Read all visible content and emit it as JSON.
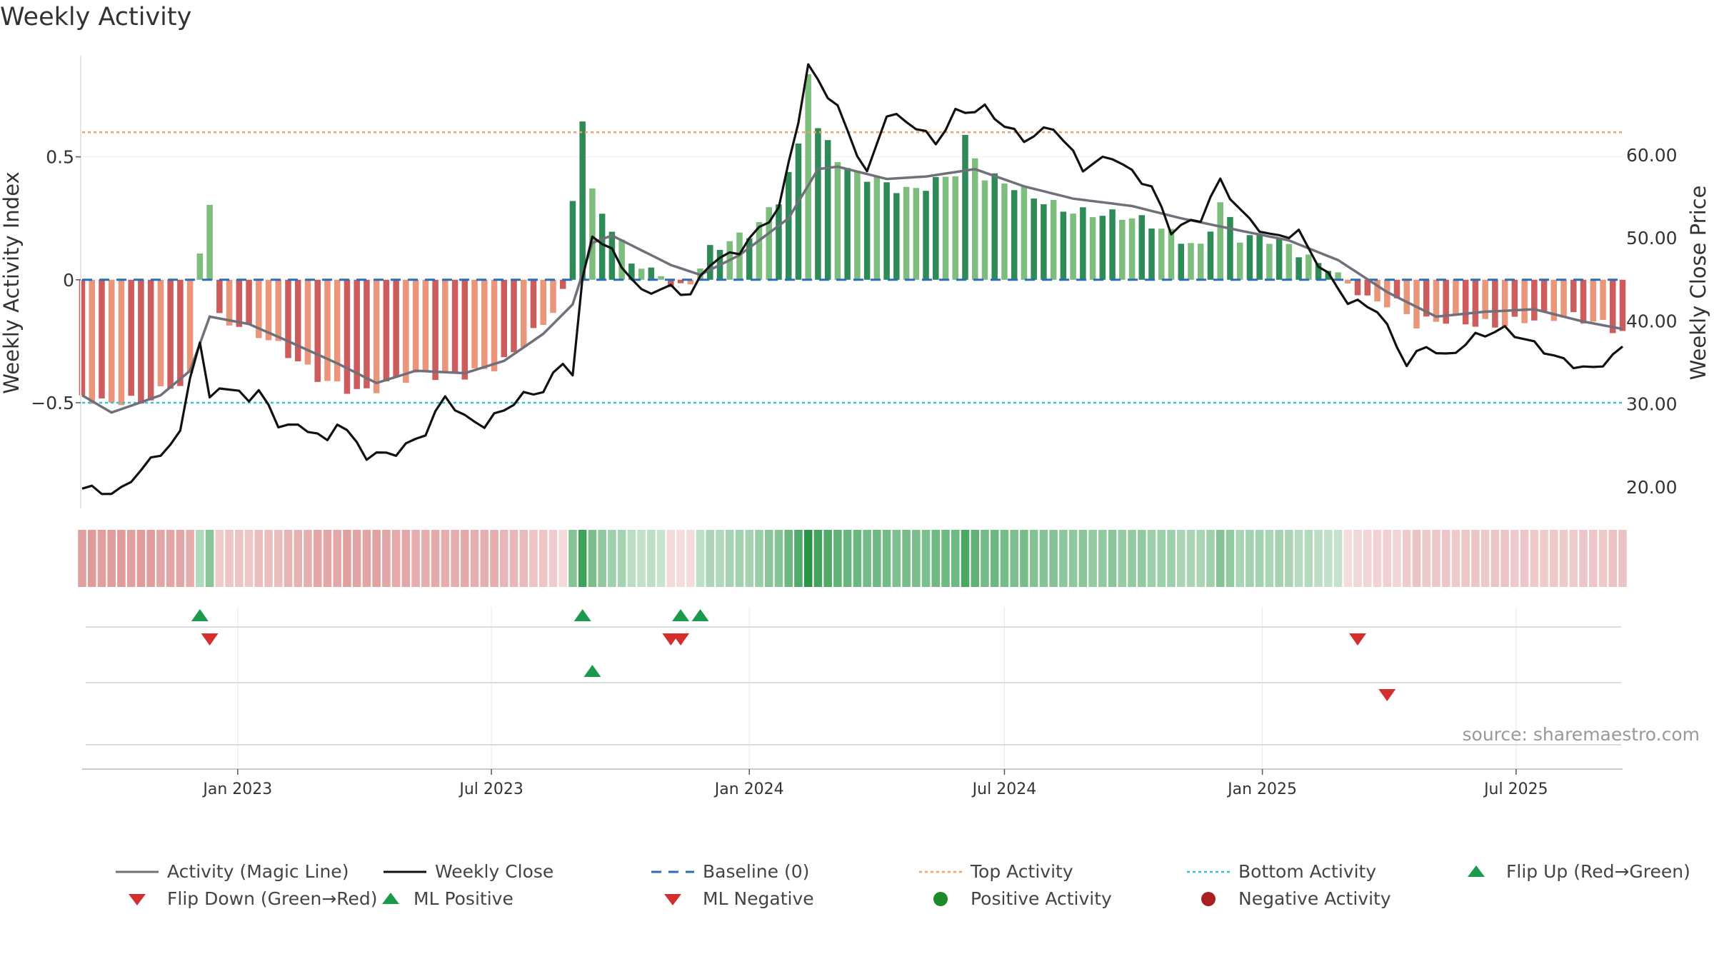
{
  "title": "Weekly Activity",
  "source": "source: sharemaestro.com",
  "colors": {
    "magic_line": "#70707a",
    "close_line": "#111111",
    "baseline": "#2a6fb5",
    "top_activity": "#f0a060",
    "bottom_activity": "#35c0e0",
    "pos_strong": "#2e8b57",
    "pos_light": "#7dbd7d",
    "neg_strong": "#cd5c5c",
    "neg_light": "#e9967a",
    "up_marker": "#1a9a4a",
    "down_marker": "#d32f2f",
    "pos_dot": "#1e8a2a",
    "neg_dot": "#a82020"
  },
  "chart_data": {
    "type": "bar",
    "title": "Weekly Activity",
    "ylabel_left": "Weekly Activity Index",
    "ylabel_right": "Weekly Close Price",
    "left_ticks": [
      {
        "value": 0.5,
        "label": "0.5"
      },
      {
        "value": 0,
        "label": "0"
      },
      {
        "value": -0.5,
        "label": "−0.5"
      }
    ],
    "right_ticks": [
      {
        "value": 60,
        "label": "60.00"
      },
      {
        "value": 50,
        "label": "50.00"
      },
      {
        "value": 40,
        "label": "40.00"
      },
      {
        "value": 30,
        "label": "30.00"
      },
      {
        "value": 20,
        "label": "20.00"
      }
    ],
    "ylim_left": [
      -0.93,
      0.92
    ],
    "ylim_right": [
      17.4,
      72.2
    ],
    "x_start": "2022-09-12",
    "x_end": "2025-09-15",
    "x_ticks": [
      {
        "date": "2023-01-01",
        "label": "Jan 2023"
      },
      {
        "date": "2023-07-01",
        "label": "Jul 2023"
      },
      {
        "date": "2024-01-01",
        "label": "Jan 2024"
      },
      {
        "date": "2024-07-01",
        "label": "Jul 2024"
      },
      {
        "date": "2025-01-01",
        "label": "Jan 2025"
      },
      {
        "date": "2025-07-01",
        "label": "Jul 2025"
      }
    ],
    "top_activity": 0.6,
    "bottom_activity": -0.5,
    "baseline": 0,
    "activity_knots": [
      [
        "2022-09-12",
        -0.47
      ],
      [
        "2022-09-26",
        -0.52
      ],
      [
        "2022-10-24",
        -0.51
      ],
      [
        "2022-11-14",
        -0.42
      ],
      [
        "2022-11-28",
        -0.38
      ],
      [
        "2022-12-05",
        0.14
      ],
      [
        "2022-12-12",
        0.33
      ],
      [
        "2022-12-19",
        -0.15
      ],
      [
        "2023-02-27",
        -0.38
      ],
      [
        "2023-04-03",
        -0.45
      ],
      [
        "2023-06-05",
        -0.38
      ],
      [
        "2023-07-10",
        -0.32
      ],
      [
        "2023-08-07",
        -0.2
      ],
      [
        "2023-08-21",
        -0.08
      ],
      [
        "2023-08-28",
        0.31
      ],
      [
        "2023-09-04",
        0.65
      ],
      [
        "2023-09-11",
        0.35
      ],
      [
        "2023-10-09",
        0.1
      ],
      [
        "2023-10-30",
        0.02
      ],
      [
        "2023-11-06",
        -0.03
      ],
      [
        "2023-11-20",
        -0.02
      ],
      [
        "2023-12-04",
        0.1
      ],
      [
        "2024-01-01",
        0.2
      ],
      [
        "2024-01-22",
        0.35
      ],
      [
        "2024-02-05",
        0.55
      ],
      [
        "2024-02-12",
        0.86
      ],
      [
        "2024-02-19",
        0.6
      ],
      [
        "2024-03-11",
        0.42
      ],
      [
        "2024-04-22",
        0.38
      ],
      [
        "2024-05-27",
        0.44
      ],
      [
        "2024-06-03",
        0.56
      ],
      [
        "2024-06-17",
        0.4
      ],
      [
        "2024-08-19",
        0.3
      ],
      [
        "2024-10-07",
        0.22
      ],
      [
        "2024-11-18",
        0.15
      ],
      [
        "2024-12-02",
        0.33
      ],
      [
        "2024-12-16",
        0.18
      ],
      [
        "2025-01-06",
        0.15
      ],
      [
        "2025-02-10",
        0.06
      ],
      [
        "2025-02-24",
        0.03
      ],
      [
        "2025-03-10",
        -0.05
      ],
      [
        "2025-04-07",
        -0.1
      ],
      [
        "2025-04-21",
        -0.2
      ],
      [
        "2025-05-12",
        -0.18
      ],
      [
        "2025-07-07",
        -0.15
      ],
      [
        "2025-09-15",
        -0.2
      ]
    ],
    "magic_line_knots": [
      [
        "2022-09-12",
        -0.47
      ],
      [
        "2022-10-03",
        -0.54
      ],
      [
        "2022-11-07",
        -0.47
      ],
      [
        "2022-11-28",
        -0.37
      ],
      [
        "2022-12-12",
        -0.15
      ],
      [
        "2023-01-09",
        -0.18
      ],
      [
        "2023-02-06",
        -0.25
      ],
      [
        "2023-03-13",
        -0.34
      ],
      [
        "2023-04-10",
        -0.42
      ],
      [
        "2023-05-08",
        -0.37
      ],
      [
        "2023-06-12",
        -0.38
      ],
      [
        "2023-07-10",
        -0.33
      ],
      [
        "2023-08-07",
        -0.22
      ],
      [
        "2023-08-28",
        -0.1
      ],
      [
        "2023-09-11",
        0.15
      ],
      [
        "2023-09-25",
        0.18
      ],
      [
        "2023-10-16",
        0.12
      ],
      [
        "2023-11-06",
        0.06
      ],
      [
        "2023-11-27",
        0.02
      ],
      [
        "2023-12-25",
        0.1
      ],
      [
        "2024-01-29",
        0.25
      ],
      [
        "2024-02-19",
        0.45
      ],
      [
        "2024-03-04",
        0.46
      ],
      [
        "2024-04-08",
        0.41
      ],
      [
        "2024-05-06",
        0.42
      ],
      [
        "2024-06-10",
        0.45
      ],
      [
        "2024-07-15",
        0.38
      ],
      [
        "2024-08-19",
        0.33
      ],
      [
        "2024-09-30",
        0.3
      ],
      [
        "2024-11-04",
        0.25
      ],
      [
        "2024-12-16",
        0.2
      ],
      [
        "2025-01-20",
        0.16
      ],
      [
        "2025-02-24",
        0.08
      ],
      [
        "2025-03-31",
        -0.05
      ],
      [
        "2025-05-05",
        -0.15
      ],
      [
        "2025-06-09",
        -0.13
      ],
      [
        "2025-07-14",
        -0.12
      ],
      [
        "2025-08-18",
        -0.17
      ],
      [
        "2025-09-15",
        -0.2
      ]
    ],
    "close_knots": [
      [
        "2022-09-12",
        20.0
      ],
      [
        "2022-09-26",
        19.6
      ],
      [
        "2022-10-10",
        20.0
      ],
      [
        "2022-10-24",
        22.5
      ],
      [
        "2022-11-07",
        24.0
      ],
      [
        "2022-11-21",
        26.0
      ],
      [
        "2022-11-28",
        33.0
      ],
      [
        "2022-12-05",
        37.0
      ],
      [
        "2022-12-12",
        30.0
      ],
      [
        "2022-12-19",
        32.0
      ],
      [
        "2023-01-09",
        31.0
      ],
      [
        "2023-01-16",
        32.0
      ],
      [
        "2023-01-30",
        28.0
      ],
      [
        "2023-02-20",
        27.0
      ],
      [
        "2023-03-06",
        25.0
      ],
      [
        "2023-03-13",
        27.5
      ],
      [
        "2023-04-03",
        23.5
      ],
      [
        "2023-04-24",
        24.5
      ],
      [
        "2023-05-15",
        27.0
      ],
      [
        "2023-05-29",
        31.0
      ],
      [
        "2023-06-12",
        28.0
      ],
      [
        "2023-06-26",
        27.0
      ],
      [
        "2023-07-24",
        31.0
      ],
      [
        "2023-08-07",
        32.0
      ],
      [
        "2023-08-21",
        35.5
      ],
      [
        "2023-08-28",
        34.0
      ],
      [
        "2023-09-04",
        45.0
      ],
      [
        "2023-09-11",
        50.5
      ],
      [
        "2023-09-25",
        48.0
      ],
      [
        "2023-10-16",
        43.0
      ],
      [
        "2023-11-06",
        44.0
      ],
      [
        "2023-11-20",
        43.5
      ],
      [
        "2023-12-04",
        47.5
      ],
      [
        "2023-12-25",
        48.5
      ],
      [
        "2024-01-22",
        53.0
      ],
      [
        "2024-02-05",
        64.0
      ],
      [
        "2024-02-12",
        70.5
      ],
      [
        "2024-03-04",
        66.0
      ],
      [
        "2024-03-25",
        58.0
      ],
      [
        "2024-04-08",
        65.0
      ],
      [
        "2024-04-29",
        63.0
      ],
      [
        "2024-05-13",
        61.0
      ],
      [
        "2024-05-27",
        65.0
      ],
      [
        "2024-06-17",
        66.0
      ],
      [
        "2024-07-15",
        62.0
      ],
      [
        "2024-08-05",
        63.0
      ],
      [
        "2024-08-26",
        58.0
      ],
      [
        "2024-09-16",
        60.0
      ],
      [
        "2024-10-14",
        56.5
      ],
      [
        "2024-10-28",
        51.0
      ],
      [
        "2024-11-18",
        52.0
      ],
      [
        "2024-12-02",
        56.5
      ],
      [
        "2024-12-16",
        53.0
      ],
      [
        "2025-01-06",
        50.5
      ],
      [
        "2025-01-27",
        51.0
      ],
      [
        "2025-02-10",
        47.0
      ],
      [
        "2025-03-03",
        42.0
      ],
      [
        "2025-03-24",
        41.0
      ],
      [
        "2025-04-14",
        35.0
      ],
      [
        "2025-04-28",
        37.5
      ],
      [
        "2025-05-12",
        36.0
      ],
      [
        "2025-06-02",
        38.0
      ],
      [
        "2025-06-23",
        38.5
      ],
      [
        "2025-07-14",
        37.0
      ],
      [
        "2025-08-04",
        35.5
      ],
      [
        "2025-08-25",
        34.5
      ],
      [
        "2025-09-15",
        36.5
      ]
    ],
    "flip_up_row1": [
      "2022-12-05",
      "2023-09-04",
      "2023-11-13",
      "2023-11-27"
    ],
    "flip_down_row1": [
      "2022-12-12",
      "2023-11-06",
      "2023-11-13",
      "2025-03-10"
    ],
    "ml_positive_row2": [
      "2023-09-11"
    ],
    "ml_negative_row2": [
      "2025-03-31"
    ]
  },
  "legend": [
    {
      "key": "magic_line",
      "label": "Activity (Magic Line)"
    },
    {
      "key": "close",
      "label": "Weekly Close"
    },
    {
      "key": "baseline",
      "label": "Baseline (0)"
    },
    {
      "key": "top",
      "label": "Top Activity"
    },
    {
      "key": "bottom",
      "label": "Bottom Activity"
    },
    {
      "key": "flip_up",
      "label": "Flip Up (Red→Green)"
    },
    {
      "key": "flip_down",
      "label": "Flip Down (Green→Red)"
    },
    {
      "key": "ml_pos",
      "label": "ML Positive"
    },
    {
      "key": "ml_neg",
      "label": "ML Negative"
    },
    {
      "key": "pos_act",
      "label": "Positive Activity"
    },
    {
      "key": "neg_act",
      "label": "Negative Activity"
    }
  ]
}
